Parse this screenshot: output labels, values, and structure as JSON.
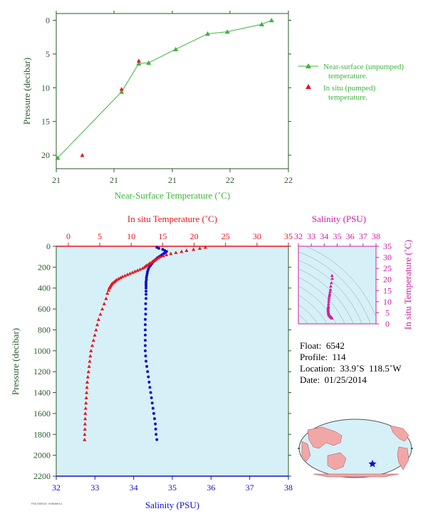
{
  "colors": {
    "green": "#3db33d",
    "red": "#e8141e",
    "blue": "#1010d0",
    "magenta": "#cc20a0",
    "panel_bg": "#d6f0f8",
    "axis_dark": "#2a5a2a"
  },
  "chart_data": [
    {
      "type": "line",
      "xlabel": "Near-Surface Temperature (˚C)",
      "ylabel": "Pressure (decibar)",
      "xlim": [
        21,
        22
      ],
      "ylim": [
        22,
        -1
      ],
      "x_ticks": [
        "21",
        "21",
        "21",
        "21",
        "22",
        "22"
      ],
      "x_tick_values": [
        21.0,
        21.2,
        21.4,
        21.6,
        21.8,
        22.0
      ],
      "y_ticks": [
        0,
        5,
        10,
        15,
        20
      ],
      "series": [
        {
          "name": "Near-surface (unpumped) temperature.",
          "marker": "triangle",
          "color": "#3db33d",
          "x": [
            21.82,
            21.78,
            21.64,
            21.56,
            21.43,
            21.32,
            21.28,
            21.21,
            20.95
          ],
          "y": [
            0.0,
            0.6,
            1.7,
            2.0,
            4.3,
            6.3,
            6.4,
            10.6,
            20.4
          ]
        },
        {
          "name": "In situ (pumped) temperature.",
          "marker": "triangle",
          "color": "#e8141e",
          "x": [
            21.28,
            21.21,
            21.05
          ],
          "y": [
            6.0,
            10.2,
            20.0
          ]
        }
      ],
      "legend": "right"
    },
    {
      "type": "scatter",
      "title_top": "In situ Temperature (˚C)",
      "xlabel_bottom": "Salinity (PSU)",
      "ylabel": "Pressure (decibar)",
      "temp_xlim": [
        0,
        35
      ],
      "temp_ticks": [
        0,
        5,
        10,
        15,
        20,
        25,
        30,
        35
      ],
      "sal_xlim": [
        32,
        38
      ],
      "sal_ticks": [
        32,
        33,
        34,
        35,
        36,
        37,
        38
      ],
      "ylim": [
        2200,
        0
      ],
      "y_ticks": [
        0,
        200,
        400,
        600,
        800,
        1000,
        1200,
        1400,
        1600,
        1800,
        2000,
        2200
      ],
      "temperature": {
        "pressure": [
          10,
          20,
          30,
          40,
          50,
          60,
          70,
          80,
          90,
          100,
          110,
          120,
          130,
          140,
          150,
          160,
          170,
          180,
          190,
          200,
          210,
          220,
          230,
          240,
          250,
          260,
          270,
          280,
          290,
          300,
          310,
          320,
          330,
          340,
          350,
          360,
          370,
          380,
          390,
          400,
          420,
          450,
          500,
          550,
          600,
          650,
          700,
          750,
          800,
          850,
          900,
          950,
          1000,
          1050,
          1100,
          1150,
          1200,
          1250,
          1300,
          1350,
          1400,
          1450,
          1500,
          1550,
          1600,
          1650,
          1700,
          1750,
          1800,
          1850
        ],
        "value": [
          21.8,
          20.9,
          19.9,
          18.8,
          18.0,
          17.1,
          16.3,
          15.6,
          15.1,
          14.6,
          14.3,
          14.0,
          13.8,
          13.5,
          13.3,
          13.0,
          12.8,
          12.5,
          12.3,
          12.1,
          11.8,
          11.4,
          11.0,
          10.6,
          10.2,
          9.8,
          9.4,
          9.0,
          8.6,
          8.3,
          8.0,
          7.7,
          7.5,
          7.3,
          7.1,
          6.9,
          6.8,
          6.7,
          6.6,
          6.5,
          6.4,
          6.2,
          6.0,
          5.7,
          5.4,
          5.1,
          4.8,
          4.6,
          4.4,
          4.2,
          4.0,
          3.8,
          3.6,
          3.5,
          3.4,
          3.3,
          3.2,
          3.1,
          3.0,
          2.95,
          2.9,
          2.85,
          2.8,
          2.75,
          2.7,
          2.68,
          2.65,
          2.63,
          2.6,
          2.58
        ]
      },
      "salinity": {
        "pressure": [
          10,
          20,
          30,
          40,
          50,
          60,
          70,
          80,
          90,
          100,
          110,
          120,
          130,
          140,
          150,
          160,
          170,
          180,
          190,
          200,
          220,
          240,
          260,
          280,
          300,
          320,
          340,
          360,
          380,
          400,
          430,
          460,
          500,
          550,
          600,
          650,
          700,
          750,
          800,
          850,
          900,
          950,
          1000,
          1050,
          1100,
          1150,
          1200,
          1250,
          1300,
          1350,
          1400,
          1450,
          1500,
          1550,
          1600,
          1650,
          1700,
          1750,
          1800,
          1850
        ],
        "value": [
          34.6,
          34.65,
          34.75,
          34.8,
          34.85,
          34.82,
          34.78,
          34.74,
          34.7,
          34.66,
          34.62,
          34.59,
          34.56,
          34.53,
          34.5,
          34.48,
          34.46,
          34.44,
          34.42,
          34.4,
          34.38,
          34.36,
          34.35,
          34.34,
          34.33,
          34.33,
          34.32,
          34.32,
          34.32,
          34.32,
          34.32,
          34.32,
          34.32,
          34.31,
          34.31,
          34.31,
          34.3,
          34.3,
          34.3,
          34.3,
          34.3,
          34.3,
          34.3,
          34.31,
          34.32,
          34.34,
          34.36,
          34.38,
          34.4,
          34.42,
          34.44,
          34.46,
          34.48,
          34.5,
          34.52,
          34.54,
          34.56,
          34.57,
          34.58,
          34.6
        ]
      }
    },
    {
      "type": "scatter",
      "title_top": "Salinity (PSU)",
      "ylabel_right": "In situ Temperature (˚C)",
      "sal_xlim": [
        32,
        38
      ],
      "sal_ticks": [
        32,
        33,
        34,
        35,
        36,
        37,
        38
      ],
      "temp_ylim": [
        0,
        35
      ],
      "temp_ticks": [
        0,
        5,
        10,
        15,
        20,
        25,
        30,
        35
      ],
      "points_salinity": [
        34.6,
        34.62,
        34.55,
        34.5,
        34.48,
        34.45,
        34.42,
        34.4,
        34.38,
        34.36,
        34.34,
        34.33,
        34.32,
        34.31,
        34.3,
        34.3,
        34.3,
        34.31,
        34.32,
        34.33,
        34.35,
        34.38,
        34.42,
        34.46,
        34.5,
        34.55,
        34.58,
        34.6
      ],
      "points_temperature": [
        21.8,
        20.5,
        18.5,
        17.0,
        15.5,
        14.5,
        13.5,
        12.8,
        12.0,
        11.0,
        10.0,
        9.0,
        8.0,
        7.5,
        7.0,
        6.5,
        6.0,
        5.5,
        5.0,
        4.6,
        4.2,
        3.9,
        3.6,
        3.3,
        3.1,
        2.9,
        2.7,
        2.6
      ]
    }
  ],
  "legend": {
    "unpumped_line1": "Near-surface (unpumped)",
    "unpumped_line2": "temperature.",
    "pumped_line1": "In situ (pumped)",
    "pumped_line2": "temperature."
  },
  "info": {
    "float": "Float:  6542",
    "profile": "Profile:  114",
    "location": "Location:  33.9˚S  118.5˚W",
    "date": "Date:  01/25/2014"
  },
  "map": {
    "marker_icon": "star-icon"
  },
  "footer_tiny": "PSEI0602A 02NNH014"
}
